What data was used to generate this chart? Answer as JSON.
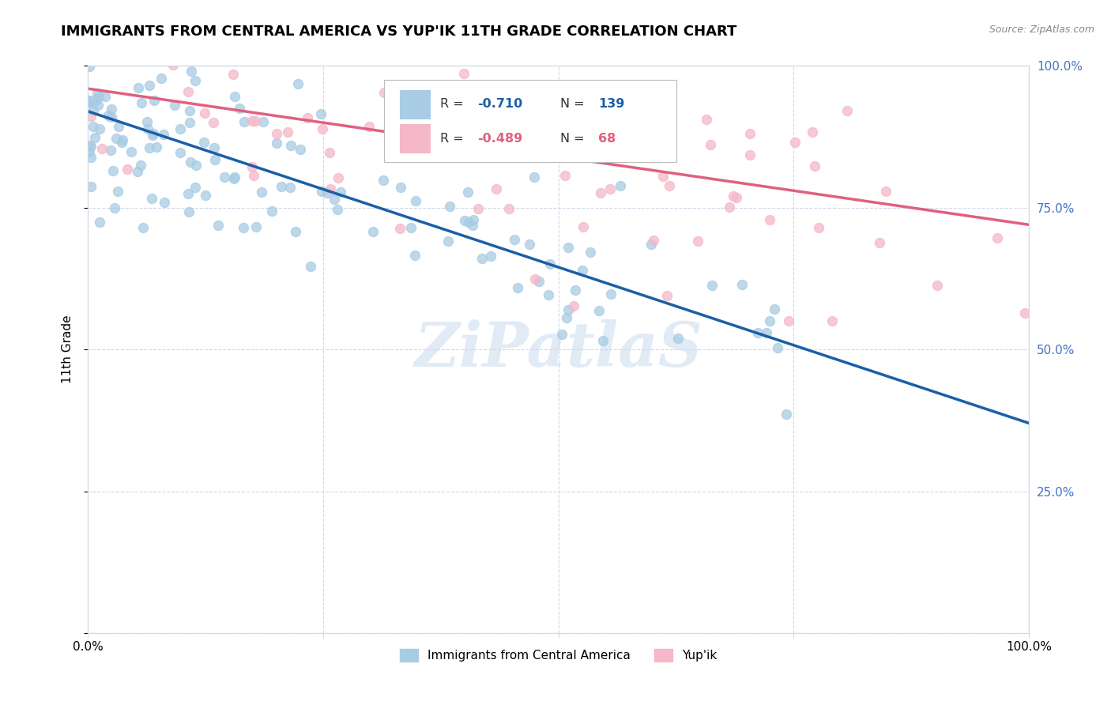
{
  "title": "IMMIGRANTS FROM CENTRAL AMERICA VS YUP'IK 11TH GRADE CORRELATION CHART",
  "source": "Source: ZipAtlas.com",
  "ylabel": "11th Grade",
  "blue_R": "-0.710",
  "blue_N": 139,
  "pink_R": "-0.489",
  "pink_N": 68,
  "blue_color": "#a8cce4",
  "pink_color": "#f4b8c8",
  "blue_line_color": "#1a5fa8",
  "pink_line_color": "#e06080",
  "watermark": "ZiPatlaS",
  "title_fontsize": 13,
  "axis_label_color": "#4472c4",
  "grid_color": "#d0d8e8",
  "background_color": "#ffffff",
  "legend_label_blue": "Immigrants from Central America",
  "legend_label_pink": "Yup'ik",
  "xmin": 0.0,
  "xmax": 1.0,
  "ymin": 0.0,
  "ymax": 1.0,
  "blue_line_x0": 0.0,
  "blue_line_y0": 0.92,
  "blue_line_x1": 1.0,
  "blue_line_y1": 0.37,
  "pink_line_x0": 0.0,
  "pink_line_y0": 0.96,
  "pink_line_x1": 1.0,
  "pink_line_y1": 0.72,
  "seed_blue": 42,
  "seed_pink": 99
}
